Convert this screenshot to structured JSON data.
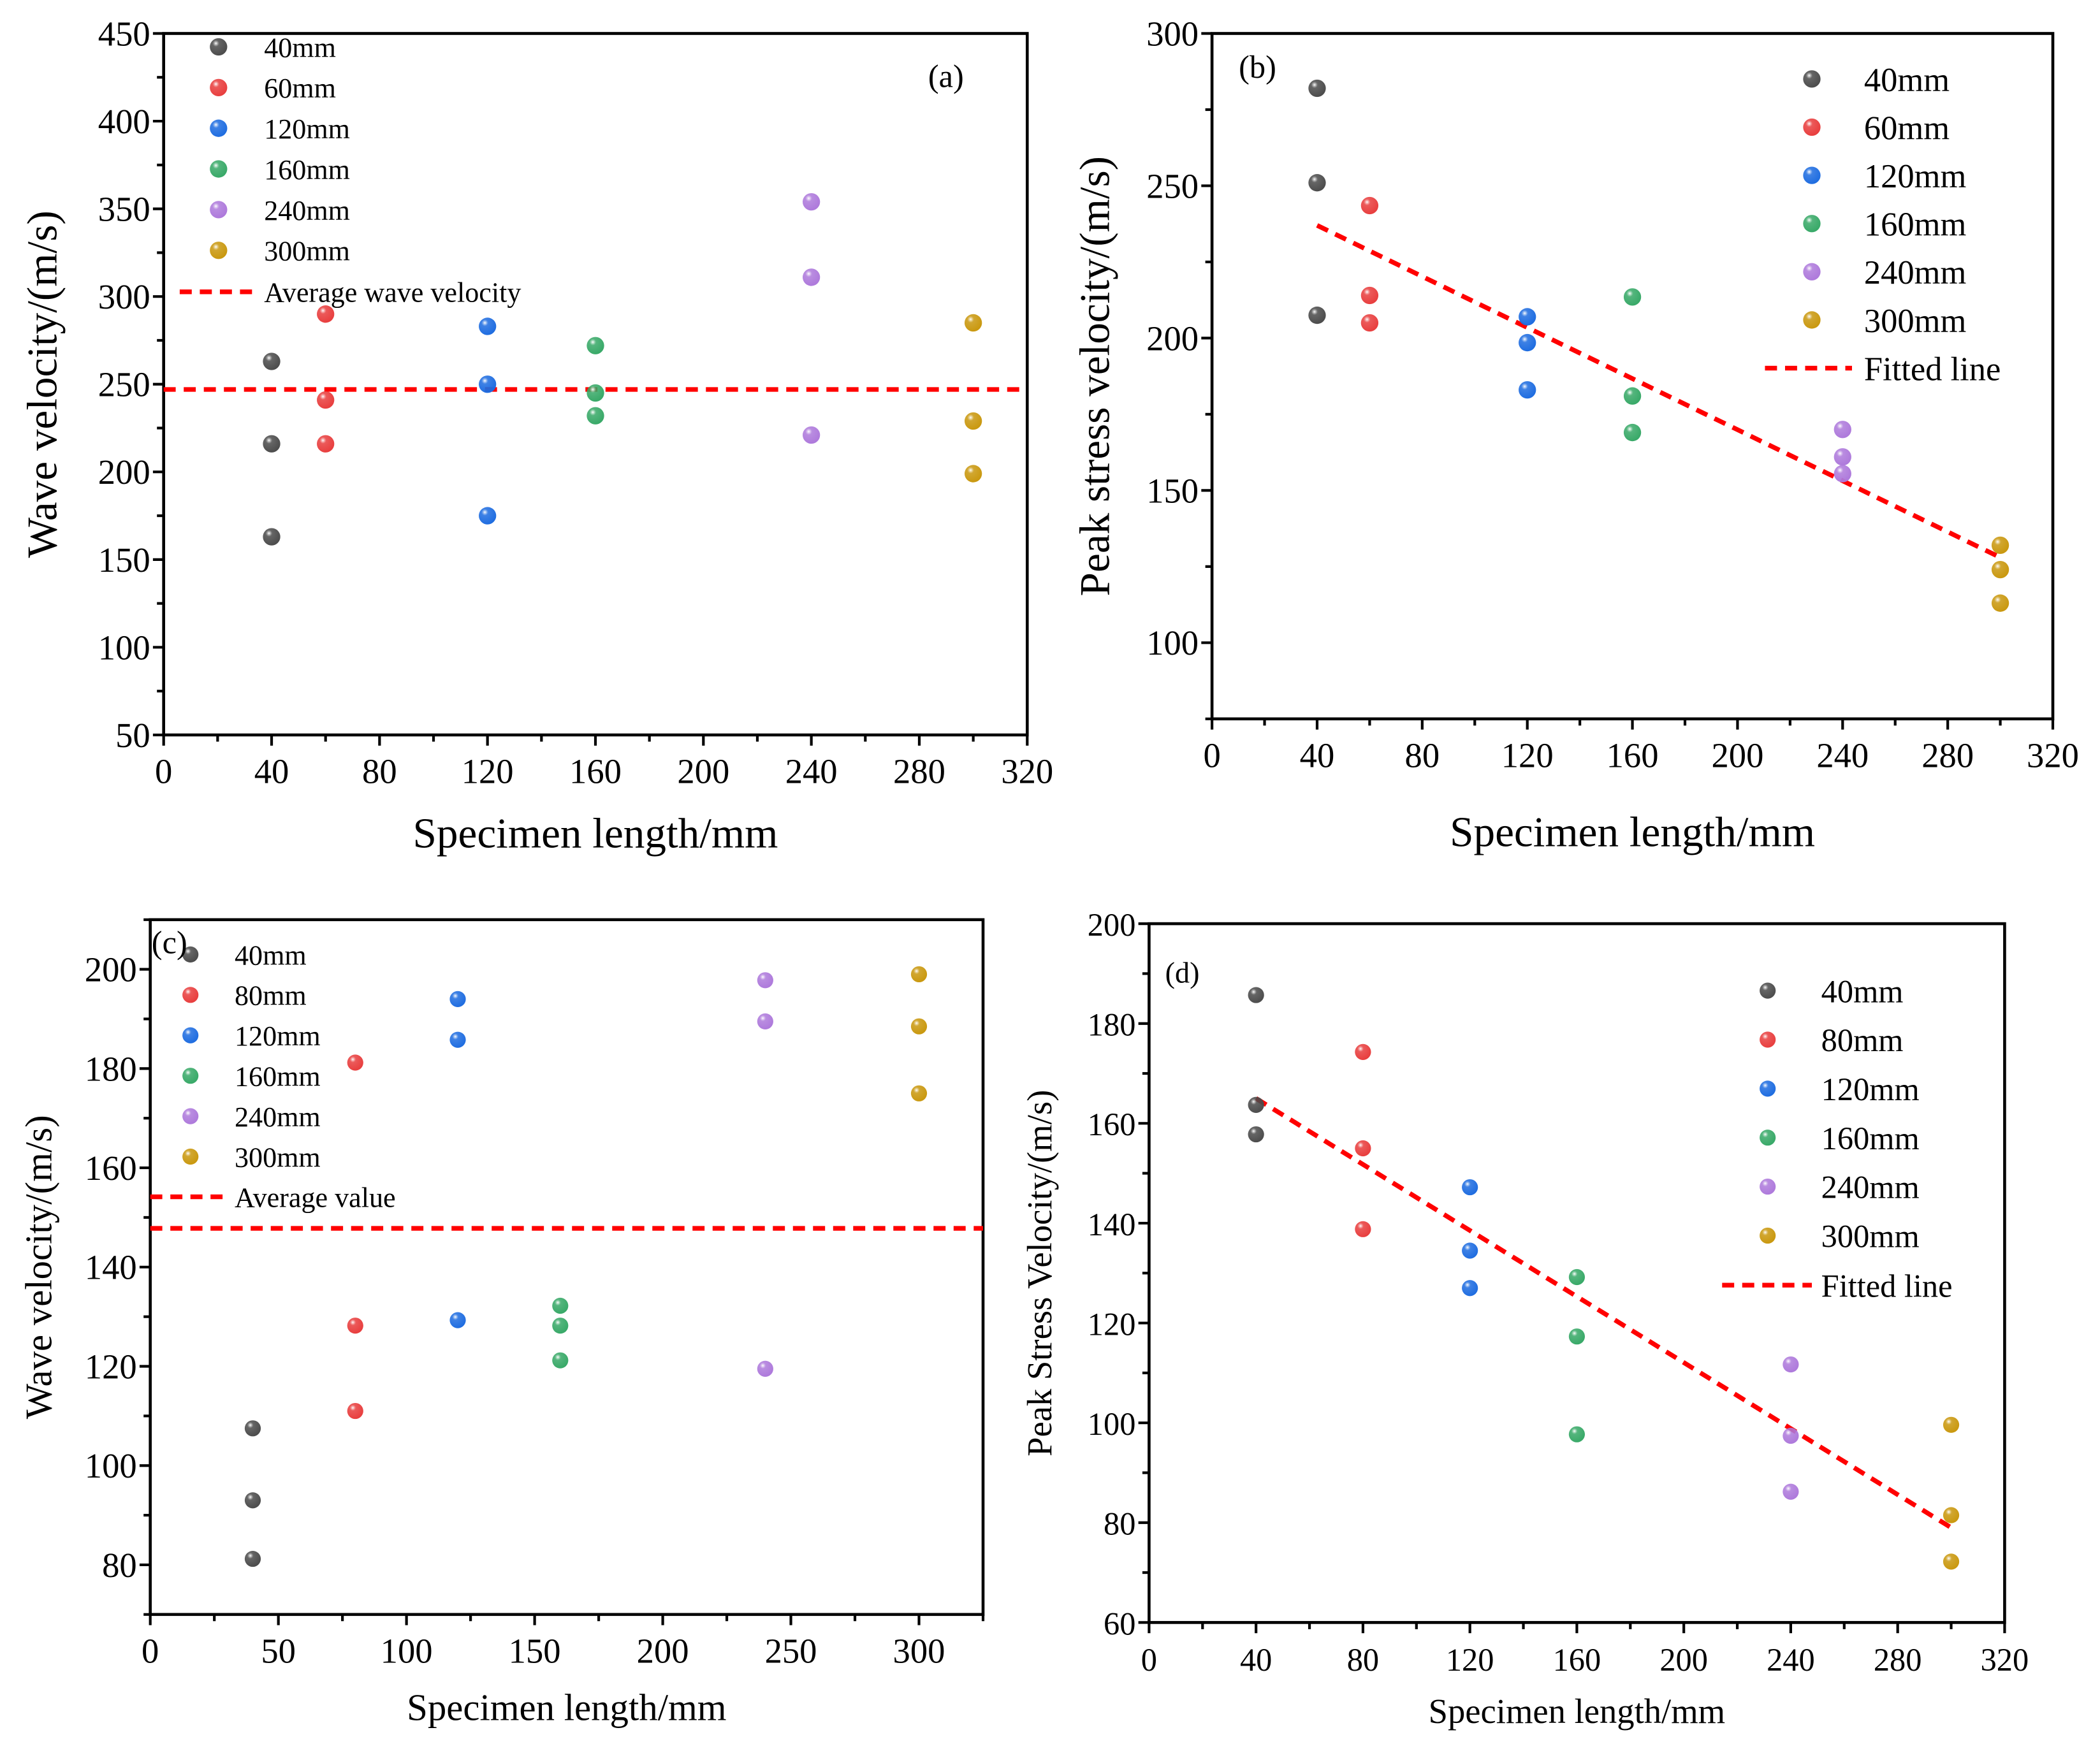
{
  "colors": {
    "40mm": "#4a4a4a",
    "60mm": "#e83c3c",
    "80mm": "#e83c3c",
    "120mm": "#1c6be0",
    "160mm": "#36a866",
    "240mm": "#ad78db",
    "300mm": "#c9970c",
    "line": "#ff0000"
  },
  "chart_data": [
    {
      "type": "scatter",
      "panel_label": "(a)",
      "xlabel": "Specimen length/mm",
      "ylabel": "Wave velocity/(m/s)",
      "xlim": [
        0,
        320
      ],
      "ylim": [
        50,
        450
      ],
      "xticks": [
        "0",
        "40",
        "80",
        "120",
        "160",
        "200",
        "240",
        "280",
        "320"
      ],
      "yticks": [
        "50",
        "100",
        "150",
        "200",
        "250",
        "300",
        "350",
        "400",
        "450"
      ],
      "legend": "top-left",
      "series": [
        {
          "name": "40mm",
          "x": 40,
          "y": [
            263,
            216,
            163
          ]
        },
        {
          "name": "60mm",
          "x": 60,
          "y": [
            290,
            241,
            216
          ]
        },
        {
          "name": "120mm",
          "x": 120,
          "y": [
            283,
            250,
            175
          ]
        },
        {
          "name": "160mm",
          "x": 160,
          "y": [
            272,
            245,
            232
          ]
        },
        {
          "name": "240mm",
          "x": 240,
          "y": [
            354,
            311,
            221
          ]
        },
        {
          "name": "300mm",
          "x": 300,
          "y": [
            285,
            229,
            199
          ]
        }
      ],
      "line": {
        "name": "Average wave velocity",
        "kind": "horizontal",
        "value": 247
      }
    },
    {
      "type": "scatter",
      "panel_label": "(b)",
      "xlabel": "Specimen length/mm",
      "ylabel": "Peak stress velocity/(m/s)",
      "xlim": [
        0,
        320
      ],
      "ylim": [
        75,
        300
      ],
      "xticks": [
        "0",
        "40",
        "80",
        "120",
        "160",
        "200",
        "240",
        "280",
        "320"
      ],
      "yticks": [
        "100",
        "150",
        "200",
        "250",
        "300"
      ],
      "legend": "top-right",
      "series": [
        {
          "name": "40mm",
          "x": 40,
          "y": [
            282,
            251,
            207.5
          ]
        },
        {
          "name": "60mm",
          "x": 60,
          "y": [
            243.5,
            214,
            205
          ]
        },
        {
          "name": "120mm",
          "x": 120,
          "y": [
            207,
            198.5,
            183
          ]
        },
        {
          "name": "160mm",
          "x": 160,
          "y": [
            213.5,
            181,
            169
          ]
        },
        {
          "name": "240mm",
          "x": 240,
          "y": [
            170,
            161,
            155.5
          ]
        },
        {
          "name": "300mm",
          "x": 300,
          "y": [
            132,
            124,
            113
          ]
        }
      ],
      "line": {
        "name": "Fitted line",
        "kind": "segment",
        "x": [
          40,
          300
        ],
        "y": [
          237,
          128
        ]
      }
    },
    {
      "type": "scatter",
      "panel_label": "(c)",
      "xlabel": "Specimen length/mm",
      "ylabel": "Wave velocity/(m/s)",
      "xlim": [
        0,
        325
      ],
      "ylim": [
        70,
        210
      ],
      "xticks": [
        "0",
        "50",
        "100",
        "150",
        "200",
        "250",
        "300"
      ],
      "yticks": [
        "80",
        "100",
        "120",
        "140",
        "160",
        "180",
        "200"
      ],
      "legend": "top-left",
      "series": [
        {
          "name": "40mm",
          "x": 40,
          "y": [
            107.5,
            93,
            81.2
          ]
        },
        {
          "name": "80mm",
          "x": 80,
          "y": [
            181.2,
            128.2,
            111
          ]
        },
        {
          "name": "120mm",
          "x": 120,
          "y": [
            194,
            185.8,
            129.3
          ]
        },
        {
          "name": "160mm",
          "x": 160,
          "y": [
            132.2,
            128.2,
            121.2
          ]
        },
        {
          "name": "240mm",
          "x": 240,
          "y": [
            197.8,
            189.5,
            119.5
          ]
        },
        {
          "name": "300mm",
          "x": 300,
          "y": [
            199,
            188.5,
            175
          ]
        }
      ],
      "line": {
        "name": "Average value",
        "kind": "horizontal",
        "value": 147.8
      }
    },
    {
      "type": "scatter",
      "panel_label": "(d)",
      "xlabel": "Specimen length/mm",
      "ylabel": "Peak Stress Velocity/(m/s)",
      "xlim": [
        0,
        320
      ],
      "ylim": [
        60,
        200
      ],
      "xticks": [
        "0",
        "40",
        "80",
        "120",
        "160",
        "200",
        "240",
        "280",
        "320"
      ],
      "yticks": [
        "60",
        "80",
        "100",
        "120",
        "140",
        "160",
        "180",
        "200"
      ],
      "legend": "top-right",
      "series": [
        {
          "name": "40mm",
          "x": 40,
          "y": [
            185.7,
            163.7,
            157.8
          ]
        },
        {
          "name": "80mm",
          "x": 80,
          "y": [
            174.3,
            155,
            138.8
          ]
        },
        {
          "name": "120mm",
          "x": 120,
          "y": [
            147.2,
            134.5,
            127
          ]
        },
        {
          "name": "160mm",
          "x": 160,
          "y": [
            129.2,
            117.3,
            97.7
          ]
        },
        {
          "name": "240mm",
          "x": 240,
          "y": [
            111.7,
            97.4,
            86.2
          ]
        },
        {
          "name": "300mm",
          "x": 300,
          "y": [
            99.6,
            81.5,
            72.2
          ]
        }
      ],
      "line": {
        "name": "Fitted line",
        "kind": "segment",
        "x": [
          40,
          300
        ],
        "y": [
          165,
          79
        ]
      }
    }
  ]
}
